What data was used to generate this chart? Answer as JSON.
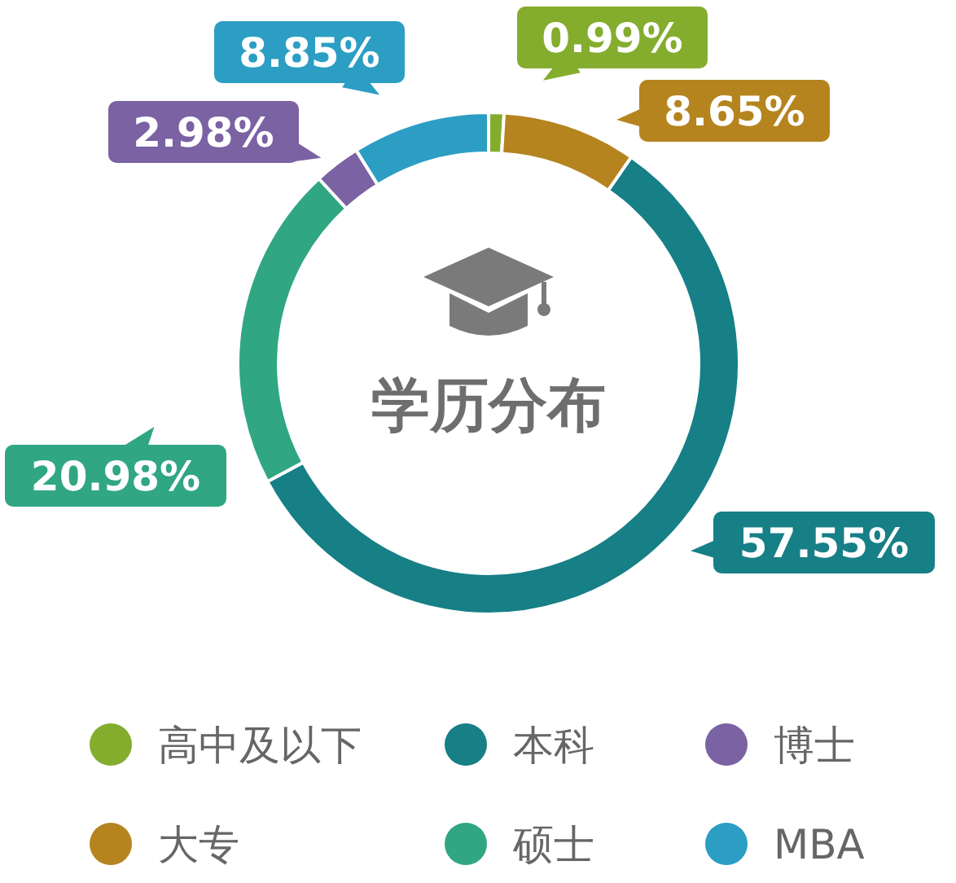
{
  "chart_data": {
    "type": "donut",
    "title": "学历分布",
    "categories": [
      "高中及以下",
      "大专",
      "本科",
      "硕士",
      "博士",
      "MBA"
    ],
    "values": [
      0.99,
      8.65,
      57.55,
      20.98,
      2.98,
      8.85
    ],
    "value_labels": [
      "0.99%",
      "8.65%",
      "57.55%",
      "20.98%",
      "2.98%",
      "8.85%"
    ],
    "colors": [
      "#84ad2e",
      "#b5841f",
      "#177f86",
      "#30a683",
      "#7a62a3",
      "#2c9ec4"
    ],
    "legend": "bottom"
  }
}
